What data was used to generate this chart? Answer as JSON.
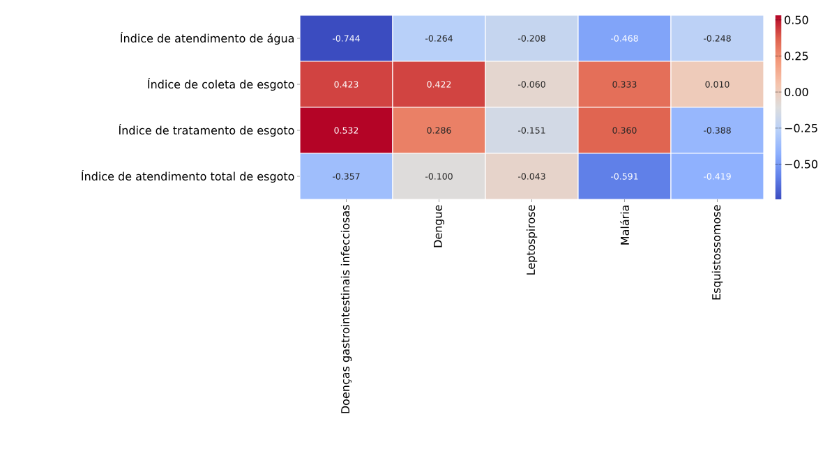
{
  "chart_data": {
    "type": "heatmap",
    "categories": [
      "Doenças gastrointestinais infecciosas",
      "Dengue",
      "Leptospirose",
      "Malária",
      "Esquistossomose"
    ],
    "y_categories": [
      "Índice de atendimento de água",
      "Índice de coleta de esgoto",
      "Índice de tratamento de esgoto",
      "Índice de atendimento total de esgoto"
    ],
    "cells": [
      [
        -0.744,
        -0.264,
        -0.208,
        -0.468,
        -0.248
      ],
      [
        0.423,
        0.422,
        -0.06,
        0.333,
        0.01
      ],
      [
        0.532,
        0.286,
        -0.151,
        0.36,
        -0.388
      ],
      [
        -0.357,
        -0.1,
        -0.043,
        -0.591,
        -0.419
      ]
    ],
    "cell_labels": [
      [
        "-0.744",
        "-0.264",
        "-0.208",
        "-0.468",
        "-0.248"
      ],
      [
        "0.423",
        "0.422",
        "-0.060",
        "0.333",
        "0.010"
      ],
      [
        "0.532",
        "0.286",
        "-0.151",
        "0.360",
        "-0.388"
      ],
      [
        "-0.357",
        "-0.100",
        "-0.043",
        "-0.591",
        "-0.419"
      ]
    ],
    "clim": [
      -0.744,
      0.532
    ],
    "cticks": [
      {
        "value": -0.5,
        "label": "−0.50"
      },
      {
        "value": -0.25,
        "label": "−0.25"
      },
      {
        "value": 0,
        "label": "0.00"
      },
      {
        "value": 0.25,
        "label": "0.25"
      },
      {
        "value": 0.5,
        "label": "0.50"
      }
    ]
  }
}
